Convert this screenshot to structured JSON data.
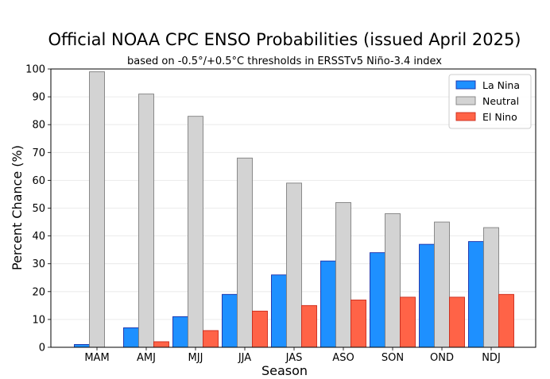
{
  "chart_data": {
    "type": "bar",
    "title": "Official NOAA CPC ENSO Probabilities (issued April 2025)",
    "subtitle": "based on -0.5°/+0.5°C thresholds in ERSSTv5 Niño-3.4 index",
    "xlabel": "Season",
    "ylabel": "Percent Chance (%)",
    "ylim": [
      0,
      100
    ],
    "yticks": [
      0,
      10,
      20,
      30,
      40,
      50,
      60,
      70,
      80,
      90,
      100
    ],
    "grid": true,
    "legend_position": "top-right",
    "categories": [
      "MAM",
      "AMJ",
      "MJJ",
      "JJA",
      "JAS",
      "ASO",
      "SON",
      "OND",
      "NDJ"
    ],
    "series": [
      {
        "name": "La Nina",
        "color": "#1e90ff",
        "edge": "#1a2ea8",
        "values": [
          1,
          7,
          11,
          19,
          26,
          31,
          34,
          37,
          38
        ]
      },
      {
        "name": "Neutral",
        "color": "#d3d3d3",
        "edge": "#808080",
        "values": [
          99,
          91,
          83,
          68,
          59,
          52,
          48,
          45,
          43
        ]
      },
      {
        "name": "El Nino",
        "color": "#ff6347",
        "edge": "#cc2a1a",
        "values": [
          0,
          2,
          6,
          13,
          15,
          17,
          18,
          18,
          19
        ]
      }
    ]
  }
}
